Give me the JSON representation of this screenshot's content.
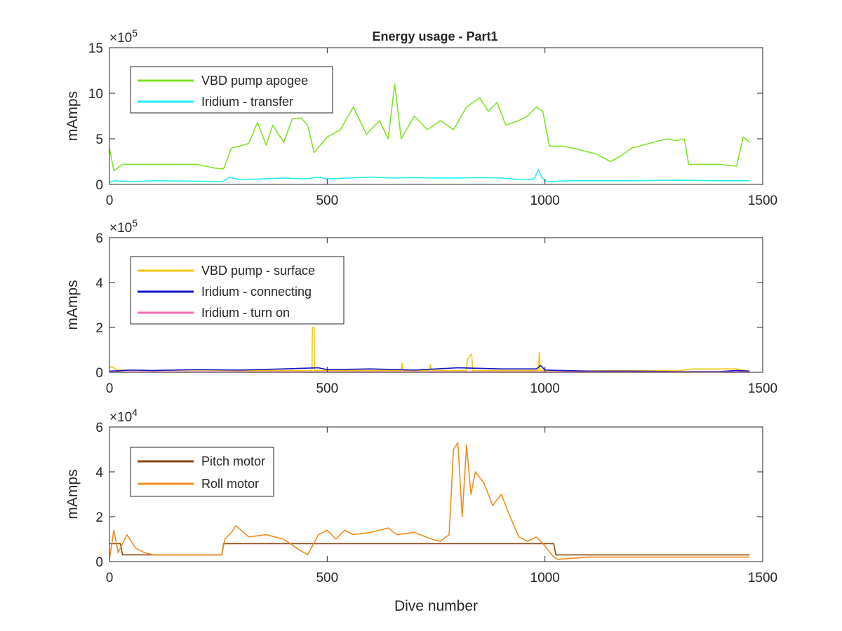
{
  "figure": {
    "title": "Energy usage - Part1"
  },
  "chart_data": [
    {
      "type": "line",
      "title": "Energy usage - Part1",
      "xlabel": "",
      "ylabel": "mAmps",
      "xlim": [
        0,
        1500
      ],
      "ylim": [
        0,
        1500000
      ],
      "xticks": [
        0,
        500,
        1000,
        1500
      ],
      "xtick_labels": [
        "0",
        "500",
        "1000",
        "1500"
      ],
      "yticks": [
        0,
        500000,
        1000000,
        1500000
      ],
      "ytick_labels": [
        "0",
        "5",
        "10",
        "15"
      ],
      "exponent_label": "×10",
      "exponent_power": "5",
      "legend_position": "top-left",
      "grid": false,
      "series": [
        {
          "name": "VBD pump apogee",
          "color": "#7fe324",
          "x": [
            0,
            10,
            30,
            100,
            200,
            240,
            262,
            280,
            300,
            320,
            340,
            360,
            375,
            400,
            420,
            440,
            455,
            470,
            500,
            530,
            560,
            590,
            620,
            640,
            655,
            670,
            700,
            730,
            760,
            790,
            820,
            850,
            870,
            890,
            910,
            940,
            960,
            980,
            995,
            1010,
            1040,
            1080,
            1120,
            1150,
            1170,
            1200,
            1240,
            1280,
            1300,
            1320,
            1330,
            1360,
            1400,
            1440,
            1455,
            1470
          ],
          "values": [
            400000,
            150000,
            220000,
            220000,
            220000,
            180000,
            170000,
            400000,
            420000,
            450000,
            680000,
            430000,
            650000,
            460000,
            720000,
            730000,
            650000,
            350000,
            520000,
            600000,
            850000,
            550000,
            700000,
            500000,
            1100000,
            500000,
            750000,
            600000,
            700000,
            600000,
            850000,
            950000,
            800000,
            900000,
            650000,
            700000,
            750000,
            850000,
            800000,
            420000,
            420000,
            380000,
            330000,
            250000,
            300000,
            400000,
            450000,
            500000,
            480000,
            500000,
            220000,
            220000,
            220000,
            200000,
            520000,
            460000
          ]
        },
        {
          "name": "Iridium - transfer",
          "color": "#1ff0f5",
          "x": [
            0,
            10,
            50,
            100,
            200,
            260,
            275,
            300,
            350,
            400,
            450,
            480,
            500,
            550,
            600,
            650,
            700,
            750,
            800,
            850,
            900,
            950,
            975,
            985,
            992,
            1000,
            1010,
            1050,
            1100,
            1200,
            1300,
            1400,
            1470
          ],
          "values": [
            20000,
            40000,
            30000,
            40000,
            35000,
            30000,
            80000,
            50000,
            60000,
            70000,
            60000,
            80000,
            60000,
            70000,
            80000,
            70000,
            75000,
            70000,
            70000,
            75000,
            70000,
            50000,
            60000,
            160000,
            80000,
            40000,
            30000,
            40000,
            40000,
            40000,
            45000,
            40000,
            40000
          ]
        }
      ]
    },
    {
      "type": "line",
      "title": "",
      "xlabel": "",
      "ylabel": "mAmps",
      "xlim": [
        0,
        1500
      ],
      "ylim": [
        0,
        600000
      ],
      "xticks": [
        0,
        500,
        1000,
        1500
      ],
      "xtick_labels": [
        "0",
        "500",
        "1000",
        "1500"
      ],
      "yticks": [
        0,
        200000,
        400000,
        600000
      ],
      "ytick_labels": [
        "0",
        "2",
        "4",
        "6"
      ],
      "exponent_label": "×10",
      "exponent_power": "5",
      "legend_position": "top-left",
      "grid": false,
      "series": [
        {
          "name": "VBD pump - surface",
          "color": "#f2c811",
          "x": [
            0,
            5,
            20,
            100,
            200,
            300,
            400,
            465,
            466,
            470,
            471,
            500,
            600,
            670,
            672,
            674,
            700,
            735,
            737,
            739,
            800,
            820,
            822,
            830,
            832,
            834,
            900,
            985,
            987,
            989,
            1000,
            1100,
            1200,
            1300,
            1340,
            1400,
            1440,
            1470
          ],
          "values": [
            20000,
            25000,
            10000,
            8000,
            10000,
            8000,
            8000,
            8000,
            200000,
            200000,
            8000,
            8000,
            8000,
            8000,
            40000,
            8000,
            8000,
            8000,
            35000,
            8000,
            8000,
            8000,
            60000,
            80000,
            75000,
            8000,
            8000,
            8000,
            90000,
            8000,
            8000,
            6000,
            8000,
            6000,
            15000,
            15000,
            15000,
            5000
          ]
        },
        {
          "name": "Iridium - connecting",
          "color": "#1414c8",
          "x": [
            0,
            50,
            100,
            200,
            300,
            400,
            480,
            500,
            600,
            700,
            800,
            900,
            980,
            990,
            1000,
            1100,
            1200,
            1300,
            1400,
            1440,
            1470
          ],
          "values": [
            5000,
            10000,
            8000,
            12000,
            10000,
            15000,
            20000,
            12000,
            15000,
            10000,
            20000,
            15000,
            15000,
            30000,
            10000,
            5000,
            5000,
            3000,
            3000,
            8000,
            5000
          ]
        },
        {
          "name": "Iridium - turn on",
          "color": "#ee6fb4",
          "x": [
            0,
            200,
            400,
            600,
            800,
            1000,
            1200,
            1470
          ],
          "values": [
            2000,
            2000,
            2000,
            2000,
            2000,
            2000,
            2000,
            2000
          ]
        }
      ]
    },
    {
      "type": "line",
      "title": "",
      "xlabel": "Dive number",
      "ylabel": "mAmps",
      "xlim": [
        0,
        1500
      ],
      "ylim": [
        0,
        60000
      ],
      "xticks": [
        0,
        500,
        1000,
        1500
      ],
      "xtick_labels": [
        "0",
        "500",
        "1000",
        "1500"
      ],
      "yticks": [
        0,
        20000,
        40000,
        60000
      ],
      "ytick_labels": [
        "0",
        "2",
        "4",
        "6"
      ],
      "exponent_label": "×10",
      "exponent_power": "4",
      "legend_position": "top-left",
      "grid": false,
      "series": [
        {
          "name": "Pitch motor",
          "color": "#8b4513",
          "x": [
            0,
            25,
            30,
            100,
            200,
            258,
            262,
            300,
            400,
            500,
            600,
            700,
            800,
            900,
            1000,
            1020,
            1025,
            1030,
            1100,
            1200,
            1300,
            1400,
            1470
          ],
          "values": [
            8000,
            8000,
            3000,
            3000,
            3000,
            3000,
            8000,
            8000,
            8000,
            8000,
            8000,
            8000,
            8000,
            8000,
            8000,
            8000,
            3000,
            3000,
            3000,
            3000,
            3000,
            3000,
            3000
          ]
        },
        {
          "name": "Roll motor",
          "color": "#f28c1b",
          "x": [
            0,
            10,
            20,
            40,
            60,
            80,
            100,
            150,
            200,
            258,
            265,
            280,
            290,
            320,
            360,
            400,
            430,
            455,
            480,
            500,
            520,
            540,
            560,
            600,
            640,
            660,
            700,
            740,
            760,
            780,
            790,
            800,
            810,
            820,
            830,
            840,
            860,
            880,
            900,
            920,
            940,
            960,
            980,
            1000,
            1020,
            1030,
            1100,
            1200,
            1300,
            1400,
            1470
          ],
          "values": [
            1000,
            14000,
            4000,
            12000,
            6000,
            4000,
            3000,
            3000,
            3000,
            3000,
            10000,
            13000,
            16000,
            11000,
            12000,
            10000,
            6000,
            3000,
            12000,
            14000,
            10000,
            14000,
            12000,
            13000,
            15000,
            12000,
            13000,
            10000,
            9000,
            12000,
            50000,
            53000,
            20000,
            52000,
            30000,
            40000,
            35000,
            25000,
            30000,
            20000,
            11000,
            9000,
            11000,
            7000,
            2000,
            1000,
            2000,
            2000,
            2000,
            2000,
            2000
          ]
        }
      ]
    }
  ]
}
